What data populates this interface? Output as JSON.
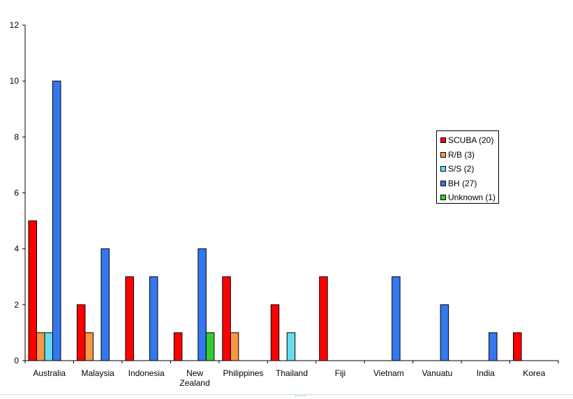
{
  "chart_data": {
    "type": "bar",
    "categories": [
      "Australia",
      "Malaysia",
      "Indonesia",
      "New Zealand",
      "Philippines",
      "Thailand",
      "Fiji",
      "Vietnam",
      "Vanuatu",
      "India",
      "Korea"
    ],
    "series": [
      {
        "name": "SCUBA (20)",
        "color": "#ff0000",
        "values": [
          5,
          2,
          3,
          1,
          3,
          2,
          3,
          0,
          0,
          0,
          1
        ]
      },
      {
        "name": "R/B (3)",
        "color": "#f79646",
        "values": [
          1,
          1,
          0,
          0,
          1,
          0,
          0,
          0,
          0,
          0,
          0
        ]
      },
      {
        "name": "S/S (2)",
        "color": "#66ddee",
        "values": [
          1,
          0,
          0,
          0,
          0,
          1,
          0,
          0,
          0,
          0,
          0
        ]
      },
      {
        "name": "BH (27)",
        "color": "#3378ee",
        "values": [
          10,
          4,
          3,
          4,
          0,
          0,
          0,
          3,
          2,
          1,
          0
        ]
      },
      {
        "name": "Unknown (1)",
        "color": "#33cc33",
        "values": [
          0,
          0,
          0,
          1,
          0,
          0,
          0,
          0,
          0,
          0,
          0
        ]
      }
    ],
    "ylim": [
      0,
      12
    ],
    "yticks": [
      0,
      2,
      4,
      6,
      8,
      10,
      12
    ],
    "title": "",
    "xlabel": "",
    "ylabel": "",
    "grid": false,
    "legend_position": "right"
  }
}
